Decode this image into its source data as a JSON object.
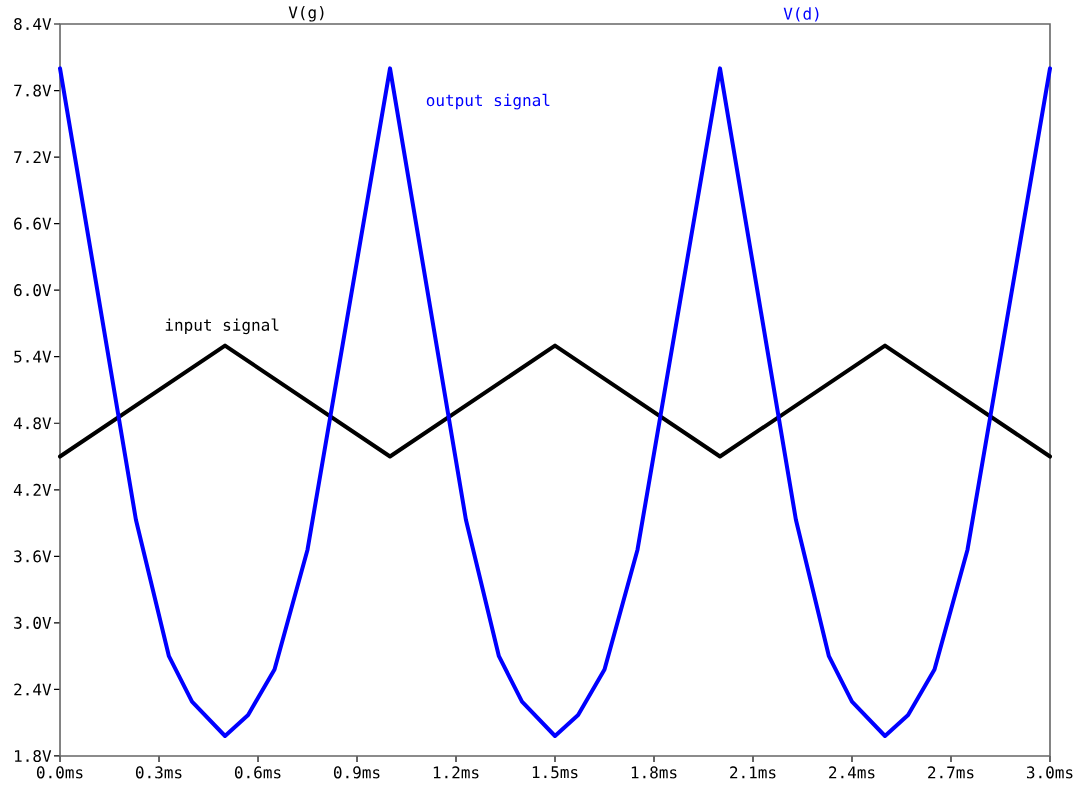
{
  "chart_data": {
    "type": "line",
    "x": [
      0,
      0.5,
      1.0,
      1.5,
      2.0,
      2.5,
      3.0
    ],
    "series": [
      {
        "name": "V(g)",
        "color": "#000000",
        "values": [
          4.5,
          5.5,
          4.5,
          5.5,
          4.5,
          5.5,
          4.5
        ]
      },
      {
        "name": "V(d)",
        "color": "#0000ff",
        "x": [
          0,
          0.23,
          0.33,
          0.4,
          0.5,
          0.57,
          0.65,
          0.75,
          1.0,
          1.23,
          1.33,
          1.4,
          1.5,
          1.57,
          1.65,
          1.75,
          2.0,
          2.23,
          2.33,
          2.4,
          2.5,
          2.57,
          2.65,
          2.75,
          3.0
        ],
        "values": [
          8.0,
          3.93,
          2.7,
          2.29,
          1.98,
          2.17,
          2.58,
          3.66,
          8.0,
          3.93,
          2.7,
          2.29,
          1.98,
          2.17,
          2.58,
          3.66,
          8.0,
          3.93,
          2.7,
          2.29,
          1.98,
          2.17,
          2.58,
          3.66,
          8.0
        ]
      }
    ],
    "xlim": [
      0,
      3.0
    ],
    "xticks": [
      {
        "value": 0,
        "label": "0.0ms"
      },
      {
        "value": 0.3,
        "label": "0.3ms"
      },
      {
        "value": 0.6,
        "label": "0.6ms"
      },
      {
        "value": 0.9,
        "label": "0.9ms"
      },
      {
        "value": 1.2,
        "label": "1.2ms"
      },
      {
        "value": 1.5,
        "label": "1.5ms"
      },
      {
        "value": 1.8,
        "label": "1.8ms"
      },
      {
        "value": 2.1,
        "label": "2.1ms"
      },
      {
        "value": 2.4,
        "label": "2.4ms"
      },
      {
        "value": 2.7,
        "label": "2.7ms"
      },
      {
        "value": 3.0,
        "label": "3.0ms"
      }
    ],
    "ylim": [
      1.8,
      8.4
    ],
    "yticks": [
      {
        "value": 1.8,
        "label": "1.8V"
      },
      {
        "value": 2.4,
        "label": "2.4V"
      },
      {
        "value": 3.0,
        "label": "3.0V"
      },
      {
        "value": 3.6,
        "label": "3.6V"
      },
      {
        "value": 4.2,
        "label": "4.2V"
      },
      {
        "value": 4.8,
        "label": "4.8V"
      },
      {
        "value": 5.4,
        "label": "5.4V"
      },
      {
        "value": 6.0,
        "label": "6.0V"
      },
      {
        "value": 6.6,
        "label": "6.6V"
      },
      {
        "value": 7.2,
        "label": "7.2V"
      },
      {
        "value": 7.8,
        "label": "7.8V"
      },
      {
        "value": 8.4,
        "label": "8.4V"
      }
    ],
    "annotations": [
      "input signal",
      "output signal"
    ],
    "grid": false,
    "legend": "top",
    "marker": "none",
    "line_style": "solid"
  }
}
